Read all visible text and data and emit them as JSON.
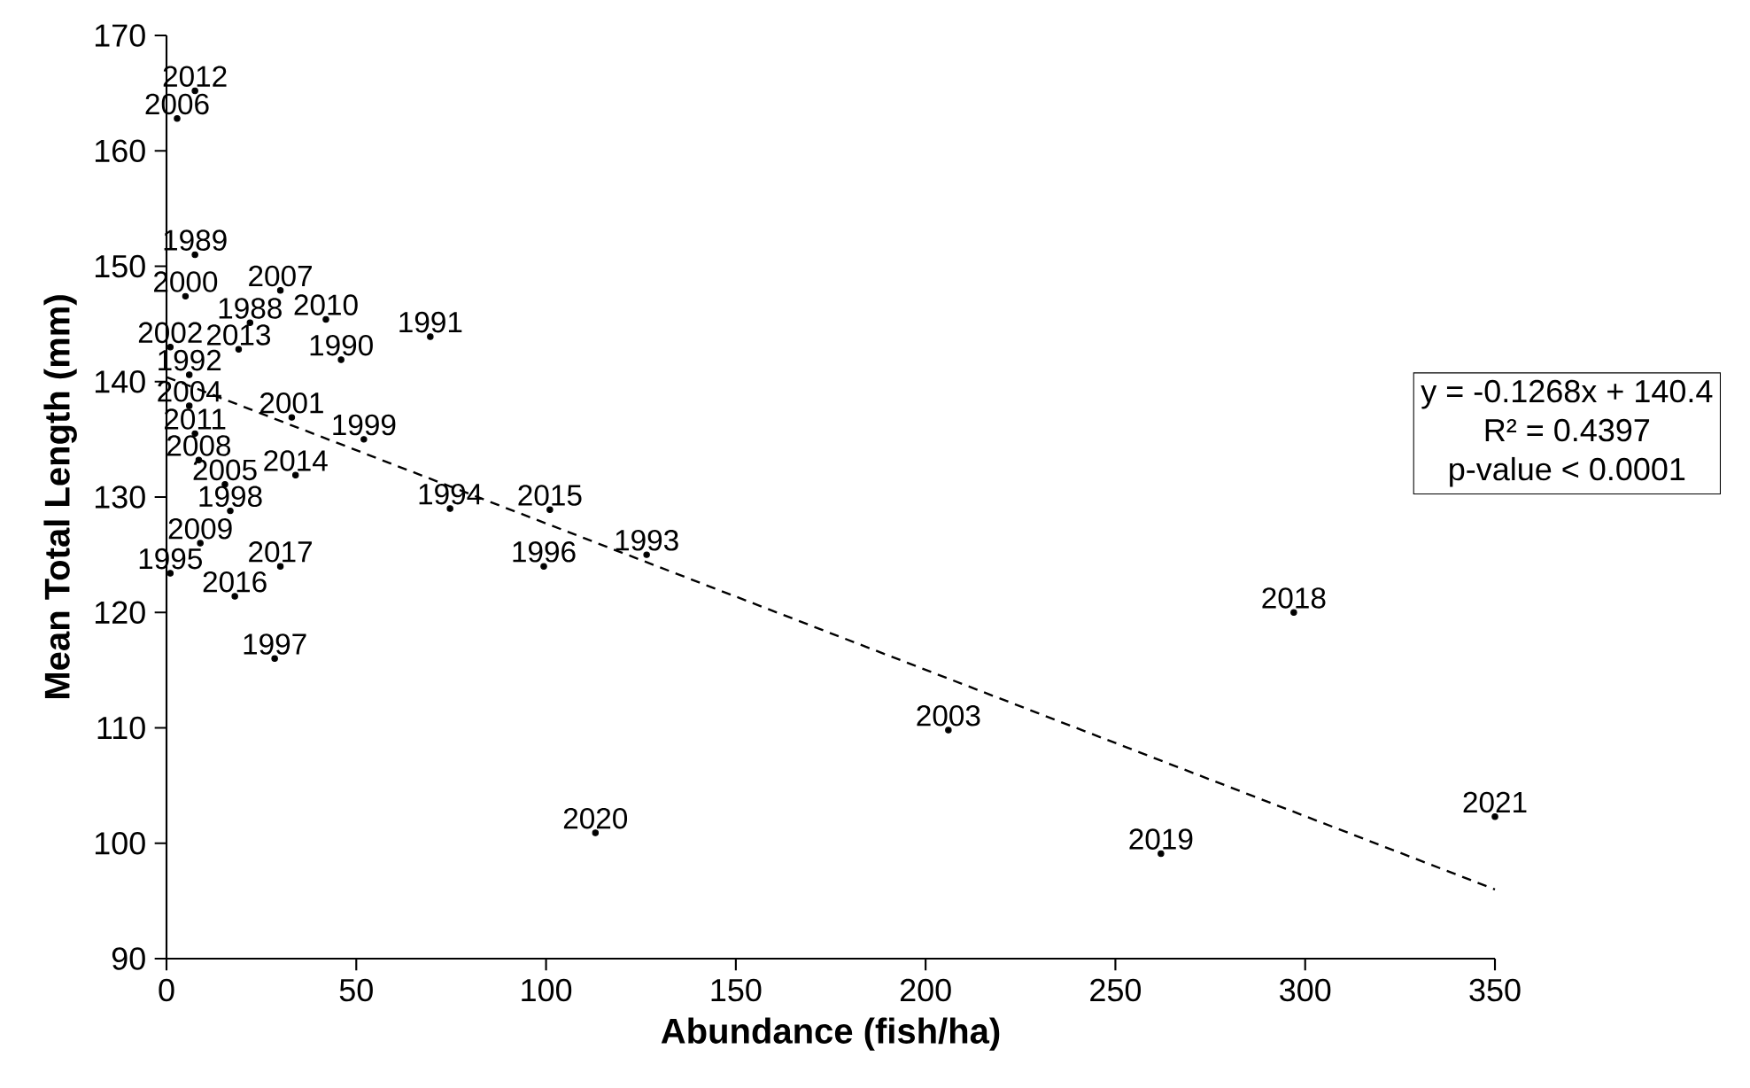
{
  "chart_data": {
    "type": "scatter",
    "xlabel": "Abundance (fish/ha)",
    "ylabel": "Mean Total Length (mm)",
    "xlim": [
      0,
      350
    ],
    "xticks": [
      0,
      50,
      100,
      150,
      200,
      250,
      300,
      350
    ],
    "ylim": [
      90,
      170
    ],
    "yticks": [
      90,
      100,
      110,
      120,
      130,
      140,
      150,
      160,
      170
    ],
    "grid": false,
    "series": [
      {
        "type": "scatter",
        "marker": "circle",
        "color": "#000000",
        "x": [
          22,
          7.5,
          46,
          69.5,
          6,
          126.5,
          74.7,
          1,
          99.4,
          28.5,
          16.8,
          52,
          5,
          33,
          1,
          206,
          6,
          15.4,
          2.8,
          30,
          8.5,
          8.9,
          42,
          7.5,
          7.5,
          19,
          34,
          101,
          18,
          30,
          297,
          262,
          113,
          350
        ],
        "values": [
          145.1,
          151.0,
          141.9,
          143.9,
          140.6,
          125.0,
          129.0,
          123.4,
          124.0,
          116.0,
          128.8,
          135.0,
          147.4,
          136.9,
          143.0,
          109.8,
          137.9,
          131.1,
          162.8,
          147.9,
          133.2,
          126.0,
          145.4,
          135.5,
          165.2,
          142.8,
          131.9,
          128.9,
          121.4,
          124.0,
          120.0,
          99.1,
          100.9,
          102.3
        ]
      },
      {
        "type": "line",
        "color": "#000000",
        "line_style": "dashed",
        "x": [
          0,
          350
        ],
        "values": [
          140.4,
          96.0
        ]
      }
    ],
    "annotations": [
      {
        "text": "1988",
        "x": 22,
        "y": 145.1
      },
      {
        "text": "1989",
        "x": 7.5,
        "y": 151.0
      },
      {
        "text": "1990",
        "x": 46,
        "y": 141.9
      },
      {
        "text": "1991",
        "x": 69.5,
        "y": 143.9
      },
      {
        "text": "1992",
        "x": 6,
        "y": 140.6
      },
      {
        "text": "1993",
        "x": 126.5,
        "y": 125.0
      },
      {
        "text": "1994",
        "x": 74.7,
        "y": 129.0
      },
      {
        "text": "1995",
        "x": 1,
        "y": 123.4
      },
      {
        "text": "1996",
        "x": 99.4,
        "y": 124.0
      },
      {
        "text": "1997",
        "x": 28.5,
        "y": 116.0
      },
      {
        "text": "1998",
        "x": 16.8,
        "y": 128.8
      },
      {
        "text": "1999",
        "x": 52,
        "y": 135.0
      },
      {
        "text": "2000",
        "x": 5,
        "y": 147.4
      },
      {
        "text": "2001",
        "x": 33,
        "y": 136.9
      },
      {
        "text": "2002",
        "x": 1,
        "y": 143.0
      },
      {
        "text": "2003",
        "x": 206,
        "y": 109.8
      },
      {
        "text": "2004",
        "x": 6,
        "y": 137.9
      },
      {
        "text": "2005",
        "x": 15.4,
        "y": 131.1
      },
      {
        "text": "2006",
        "x": 2.8,
        "y": 162.8
      },
      {
        "text": "2007",
        "x": 30,
        "y": 147.9
      },
      {
        "text": "2008",
        "x": 8.5,
        "y": 133.2
      },
      {
        "text": "2009",
        "x": 8.9,
        "y": 126.0
      },
      {
        "text": "2010",
        "x": 42,
        "y": 145.4
      },
      {
        "text": "2011",
        "x": 7.5,
        "y": 135.5
      },
      {
        "text": "2012",
        "x": 7.5,
        "y": 165.2
      },
      {
        "text": "2013",
        "x": 19,
        "y": 142.8
      },
      {
        "text": "2014",
        "x": 34,
        "y": 131.9
      },
      {
        "text": "2015",
        "x": 101,
        "y": 128.9
      },
      {
        "text": "2016",
        "x": 18,
        "y": 121.4
      },
      {
        "text": "2017",
        "x": 30,
        "y": 124.0
      },
      {
        "text": "2018",
        "x": 297,
        "y": 120.0
      },
      {
        "text": "2019",
        "x": 262,
        "y": 99.1
      },
      {
        "text": "2020",
        "x": 113,
        "y": 100.9
      },
      {
        "text": "2021",
        "x": 350,
        "y": 102.3
      },
      "y = -0.1268x + 140.4",
      "R² = 0.4397",
      "p-value < 0.0001"
    ]
  }
}
